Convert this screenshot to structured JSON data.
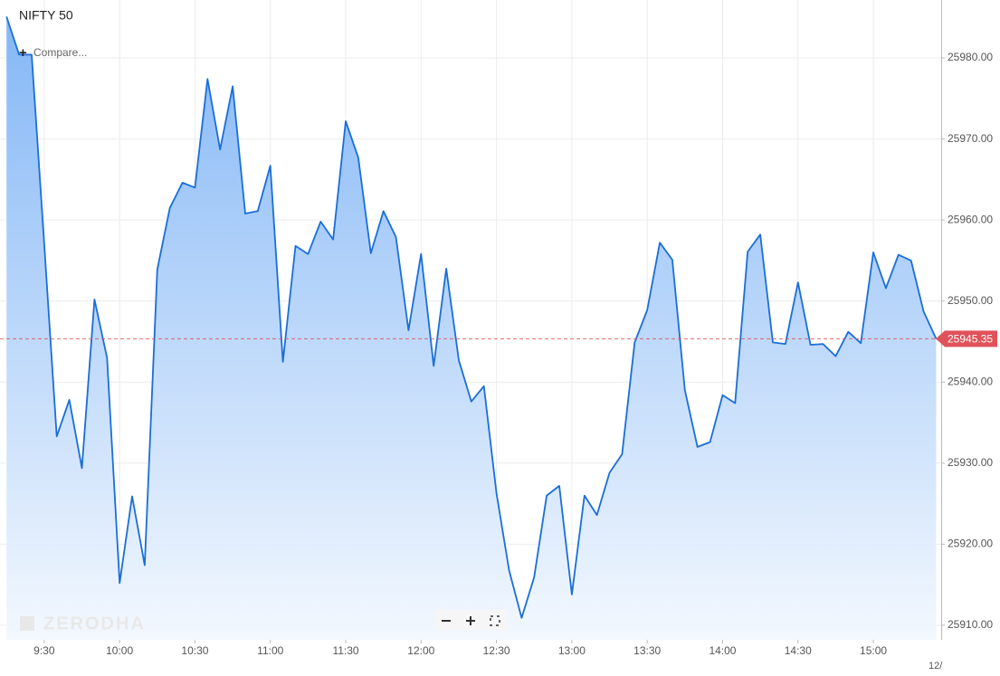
{
  "chart_data": {
    "type": "area",
    "title": "NIFTY 50",
    "compare_label": "Compare...",
    "watermark": "ZERODHA",
    "date_label": "12/",
    "color": "#1a6ed8",
    "grid": true,
    "last_price": 25945.35,
    "x": [
      555,
      560,
      565,
      570,
      575,
      580,
      585,
      590,
      595,
      600,
      605,
      610,
      615,
      620,
      625,
      630,
      635,
      640,
      645,
      650,
      655,
      660,
      665,
      670,
      675,
      680,
      685,
      690,
      695,
      700,
      705,
      710,
      715,
      720,
      725,
      730,
      735,
      740,
      745,
      750,
      755,
      760,
      765,
      770,
      775,
      780,
      785,
      790,
      795,
      800,
      805,
      810,
      815,
      820,
      825,
      830,
      835,
      840,
      845,
      850,
      855,
      860,
      865,
      870,
      875,
      880,
      885,
      890,
      895,
      900,
      905,
      910,
      915,
      920,
      925
    ],
    "series": [
      {
        "name": "NIFTY 50",
        "color": "#1a6ed8",
        "values": [
          25985.1,
          25980.4,
          25980.4,
          25957.0,
          25933.3,
          25937.8,
          25929.4,
          25950.2,
          25943.0,
          25915.2,
          25925.9,
          25917.4,
          25953.9,
          25961.5,
          25964.6,
          25964.0,
          25977.4,
          25968.7,
          25976.5,
          25960.8,
          25961.1,
          25966.7,
          25942.5,
          25956.8,
          25955.8,
          25959.8,
          25957.6,
          25972.2,
          25967.7,
          25955.9,
          25961.1,
          25957.9,
          25946.4,
          25955.8,
          25942.0,
          25954.0,
          25942.7,
          25937.6,
          25939.5,
          25926.3,
          25916.8,
          25910.9,
          25915.9,
          25926.0,
          25927.2,
          25913.8,
          25926.0,
          25923.6,
          25928.8,
          25931.1,
          25944.9,
          25948.9,
          25957.2,
          25955.1,
          25939.0,
          25932.0,
          25932.6,
          25938.4,
          25937.4,
          25956.1,
          25958.2,
          25944.9,
          25944.7,
          25952.3,
          25944.6,
          25944.7,
          25943.2,
          25946.2,
          25944.8,
          25956.0,
          25951.6,
          25955.7,
          25955.0,
          25948.7,
          25945.35
        ]
      }
    ],
    "xlim": [
      552.4,
      927
    ],
    "xticks": [
      {
        "value": 570,
        "label": "9:30"
      },
      {
        "value": 600,
        "label": "10:00"
      },
      {
        "value": 630,
        "label": "10:30"
      },
      {
        "value": 660,
        "label": "11:00"
      },
      {
        "value": 690,
        "label": "11:30"
      },
      {
        "value": 720,
        "label": "12:00"
      },
      {
        "value": 750,
        "label": "12:30"
      },
      {
        "value": 780,
        "label": "13:00"
      },
      {
        "value": 810,
        "label": "13:30"
      },
      {
        "value": 840,
        "label": "14:00"
      },
      {
        "value": 870,
        "label": "14:30"
      },
      {
        "value": 900,
        "label": "15:00"
      }
    ],
    "ylim": [
      25908.2,
      25987.15
    ],
    "yticks": [
      {
        "value": 25910,
        "label": "25910.00"
      },
      {
        "value": 25920,
        "label": "25920.00"
      },
      {
        "value": 25930,
        "label": "25930.00"
      },
      {
        "value": 25940,
        "label": "25940.00"
      },
      {
        "value": 25950,
        "label": "25950.00"
      },
      {
        "value": 25960,
        "label": "25960.00"
      },
      {
        "value": 25970,
        "label": "25970.00"
      },
      {
        "value": 25980,
        "label": "25980.00"
      }
    ]
  }
}
